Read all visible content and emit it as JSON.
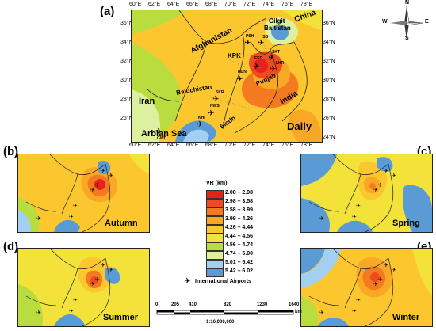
{
  "panels": {
    "a": {
      "label": "(a)",
      "season": "Daily"
    },
    "b": {
      "label": "(b)",
      "season": "Autumn"
    },
    "c": {
      "label": "(c)",
      "season": "Spring"
    },
    "d": {
      "label": "(d)",
      "season": "Summer"
    },
    "e": {
      "label": "(e)",
      "season": "Winter"
    }
  },
  "top_ticks": [
    "60°E",
    "62°E",
    "64°E",
    "66°E",
    "68°E",
    "70°E",
    "72°E",
    "74°E",
    "76°E",
    "78°E"
  ],
  "left_ticks": [
    "36°N",
    "34°N",
    "32°N",
    "30°N",
    "28°N",
    "26°N",
    "24°N"
  ],
  "right_ticks": [
    "36°N",
    "34°N",
    "32°N",
    "30°N",
    "28°N",
    "26°N",
    "24°N"
  ],
  "regions": {
    "china": "China",
    "gilgit": "Gilgit",
    "baltistan": "Baltistan",
    "afghanistan": "Afghanistan",
    "kpk": "KPK",
    "punjab": "Punjab",
    "india": "India",
    "iran": "Iran",
    "balochistan": "Baluchistan",
    "sindh": "Sindh",
    "sea": "Arbian Sea"
  },
  "airports": [
    "PSH",
    "ISB",
    "SKT",
    "FSD",
    "LHR",
    "MLN",
    "SKR",
    "NWS",
    "KHI",
    "GWD"
  ],
  "legend": {
    "title": "VR (km)",
    "rows": [
      {
        "range": "2.08 – 2.98",
        "color": "#e8201b"
      },
      {
        "range": "2.98 – 3.58",
        "color": "#f04a1e"
      },
      {
        "range": "3.58 – 3.99",
        "color": "#f47a1f"
      },
      {
        "range": "3.99 – 4.26",
        "color": "#f9a825"
      },
      {
        "range": "4.26 – 4.44",
        "color": "#fcc62e"
      },
      {
        "range": "4.44 – 4.56",
        "color": "#f3e23a"
      },
      {
        "range": "4.56 – 4.74",
        "color": "#b9dc3e"
      },
      {
        "range": "4.74 – 5.00",
        "color": "#dcf0a0"
      },
      {
        "range": "5.01 – 5.42",
        "color": "#a3cff2"
      },
      {
        "range": "5.42 – 6.02",
        "color": "#5b9bd5"
      }
    ],
    "airport_label": "International Airports"
  },
  "scale": {
    "ticks": [
      "0",
      "205",
      "410",
      "820",
      "1230",
      "1640"
    ],
    "unit": "km",
    "ratio": "1:16,000,000"
  },
  "compass": {
    "n": "N",
    "s": "S",
    "e": "E",
    "w": "W"
  }
}
